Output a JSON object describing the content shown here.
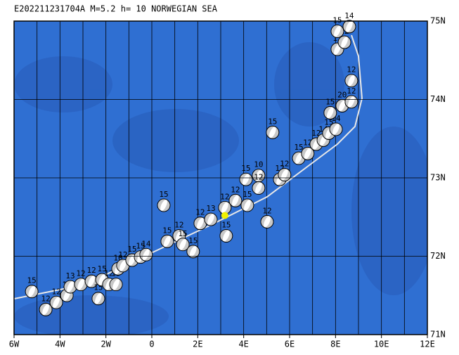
{
  "map": {
    "title": "E202211231704A M=5.2 h= 10 NORWEGIAN SEA",
    "xlim": [
      -6,
      12
    ],
    "ylim": [
      71,
      75
    ],
    "xticks": [
      {
        "value": -6,
        "label": "6W"
      },
      {
        "value": -4,
        "label": "4W"
      },
      {
        "value": -2,
        "label": "2W"
      },
      0,
      {
        "value": 2,
        "label": "2E"
      },
      {
        "value": 4,
        "label": "4E"
      },
      {
        "value": 6,
        "label": "6E"
      },
      {
        "value": 8,
        "label": "8E"
      },
      {
        "value": 10,
        "label": "10E"
      },
      {
        "value": 12,
        "label": "12E"
      }
    ],
    "yticks": [
      {
        "value": 71,
        "label": "71N"
      },
      {
        "value": 72,
        "label": "72N"
      },
      {
        "value": 73,
        "label": "73N"
      },
      {
        "value": 74,
        "label": "74N"
      },
      {
        "value": 75,
        "label": "75N"
      }
    ],
    "grid_step": 1,
    "ball_color": "#c8c8c8",
    "epicenter": {
      "lon": 3.18,
      "lat": 72.52,
      "color": "#f0f000"
    },
    "events": [
      {
        "lon": -5.23,
        "lat": 71.55,
        "depth": 15
      },
      {
        "lon": -4.62,
        "lat": 71.32,
        "depth": 12
      },
      {
        "lon": -4.16,
        "lat": 71.41,
        "depth": 12
      },
      {
        "lon": -3.7,
        "lat": 71.5,
        "depth": 15
      },
      {
        "lon": -3.55,
        "lat": 71.61,
        "depth": 13
      },
      {
        "lon": -3.09,
        "lat": 71.64,
        "depth": 12
      },
      {
        "lon": -2.63,
        "lat": 71.68,
        "depth": 12
      },
      {
        "lon": -2.33,
        "lat": 71.46,
        "depth": 15
      },
      {
        "lon": -2.17,
        "lat": 71.7,
        "depth": 15
      },
      {
        "lon": -1.87,
        "lat": 71.64,
        "depth": 12
      },
      {
        "lon": -1.56,
        "lat": 71.64,
        "depth": 15
      },
      {
        "lon": -1.47,
        "lat": 71.84,
        "depth": 10
      },
      {
        "lon": -1.26,
        "lat": 71.88,
        "depth": 12
      },
      {
        "lon": -0.86,
        "lat": 71.95,
        "depth": 15
      },
      {
        "lon": -0.49,
        "lat": 71.99,
        "depth": 15
      },
      {
        "lon": -0.25,
        "lat": 72.02,
        "depth": 14
      },
      {
        "lon": 0.52,
        "lat": 72.65,
        "depth": 15
      },
      {
        "lon": 0.67,
        "lat": 72.19,
        "depth": 15
      },
      {
        "lon": 1.19,
        "lat": 72.26,
        "depth": 12
      },
      {
        "lon": 1.35,
        "lat": 72.15,
        "depth": 15
      },
      {
        "lon": 1.8,
        "lat": 72.06,
        "depth": 15
      },
      {
        "lon": 2.11,
        "lat": 72.42,
        "depth": 12
      },
      {
        "lon": 2.57,
        "lat": 72.47,
        "depth": 13
      },
      {
        "lon": 3.18,
        "lat": 72.62,
        "depth": 12
      },
      {
        "lon": 3.24,
        "lat": 72.26,
        "depth": 15
      },
      {
        "lon": 3.64,
        "lat": 72.71,
        "depth": 12
      },
      {
        "lon": 4.16,
        "lat": 72.65,
        "depth": 15
      },
      {
        "lon": 4.1,
        "lat": 72.98,
        "depth": 15
      },
      {
        "lon": 4.65,
        "lat": 73.03,
        "depth": 10
      },
      {
        "lon": 4.65,
        "lat": 72.87,
        "depth": 12
      },
      {
        "lon": 5.02,
        "lat": 72.44,
        "depth": 12
      },
      {
        "lon": 5.26,
        "lat": 73.58,
        "depth": 15
      },
      {
        "lon": 5.57,
        "lat": 72.98,
        "depth": 12
      },
      {
        "lon": 5.78,
        "lat": 73.04,
        "depth": 12
      },
      {
        "lon": 6.4,
        "lat": 73.25,
        "depth": 15
      },
      {
        "lon": 6.79,
        "lat": 73.31,
        "depth": 12
      },
      {
        "lon": 7.16,
        "lat": 73.43,
        "depth": 12
      },
      {
        "lon": 7.47,
        "lat": 73.48,
        "depth": 14
      },
      {
        "lon": 7.71,
        "lat": 73.57,
        "depth": 15
      },
      {
        "lon": 8.02,
        "lat": 73.62,
        "depth": 14
      },
      {
        "lon": 7.77,
        "lat": 73.83,
        "depth": 15
      },
      {
        "lon": 8.29,
        "lat": 73.92,
        "depth": 20
      },
      {
        "lon": 8.69,
        "lat": 73.97,
        "depth": 12
      },
      {
        "lon": 8.69,
        "lat": 74.24,
        "depth": 12
      },
      {
        "lon": 8.08,
        "lat": 74.64,
        "depth": 15
      },
      {
        "lon": 8.39,
        "lat": 74.73,
        "depth": 12
      },
      {
        "lon": 8.6,
        "lat": 74.93,
        "depth": 14
      },
      {
        "lon": 8.08,
        "lat": 74.87,
        "depth": 15
      }
    ]
  }
}
